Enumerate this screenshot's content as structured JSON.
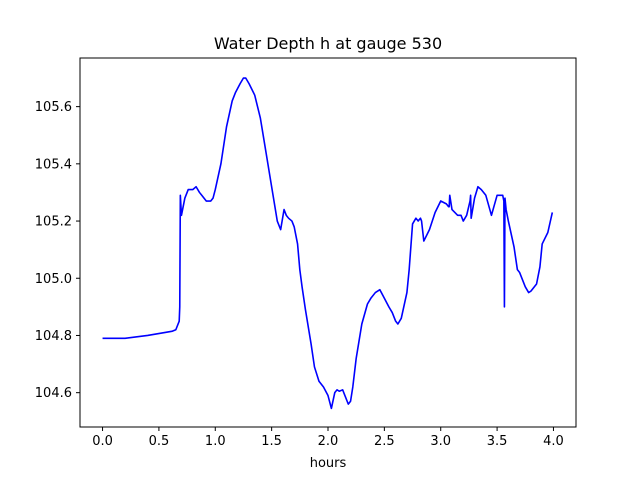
{
  "chart_data": {
    "type": "line",
    "title": "Water Depth h at gauge 530",
    "xlabel": "hours",
    "ylabel": "",
    "xlim": [
      -0.2,
      4.2
    ],
    "ylim": [
      104.48,
      105.77
    ],
    "xticks": [
      "0.0",
      "0.5",
      "1.0",
      "1.5",
      "2.0",
      "2.5",
      "3.0",
      "3.5",
      "4.0"
    ],
    "yticks": [
      "104.6",
      "104.8",
      "105.0",
      "105.2",
      "105.4",
      "105.6"
    ],
    "grid": false,
    "series": [
      {
        "color": "#0000ff",
        "x": [
          0.0,
          0.2,
          0.4,
          0.55,
          0.62,
          0.65,
          0.68,
          0.685,
          0.69,
          0.7,
          0.73,
          0.76,
          0.8,
          0.83,
          0.86,
          0.88,
          0.92,
          0.96,
          0.98,
          1.0,
          1.05,
          1.1,
          1.15,
          1.18,
          1.22,
          1.25,
          1.27,
          1.3,
          1.35,
          1.4,
          1.45,
          1.5,
          1.55,
          1.58,
          1.61,
          1.62,
          1.63,
          1.65,
          1.68,
          1.7,
          1.73,
          1.75,
          1.77,
          1.8,
          1.85,
          1.88,
          1.92,
          1.96,
          2.0,
          2.03,
          2.06,
          2.08,
          2.1,
          2.13,
          2.15,
          2.18,
          2.2,
          2.22,
          2.25,
          2.3,
          2.35,
          2.38,
          2.42,
          2.46,
          2.5,
          2.54,
          2.57,
          2.6,
          2.62,
          2.65,
          2.7,
          2.72,
          2.75,
          2.78,
          2.8,
          2.82,
          2.83,
          2.85,
          2.9,
          2.95,
          3.0,
          3.05,
          3.07,
          3.075,
          3.08,
          3.1,
          3.15,
          3.18,
          3.2,
          3.23,
          3.26,
          3.265,
          3.27,
          3.3,
          3.33,
          3.36,
          3.4,
          3.45,
          3.5,
          3.55,
          3.56,
          3.565,
          3.57,
          3.575,
          3.58,
          3.6,
          3.65,
          3.68,
          3.7,
          3.75,
          3.78,
          3.8,
          3.85,
          3.88,
          3.9,
          3.95,
          3.99
        ],
        "y": [
          104.79,
          104.79,
          104.8,
          104.81,
          104.815,
          104.82,
          104.85,
          104.9,
          105.29,
          105.22,
          105.28,
          105.31,
          105.31,
          105.32,
          105.3,
          105.29,
          105.27,
          105.27,
          105.28,
          105.31,
          105.4,
          105.53,
          105.62,
          105.65,
          105.68,
          105.7,
          105.7,
          105.68,
          105.64,
          105.56,
          105.44,
          105.32,
          105.2,
          105.17,
          105.24,
          105.23,
          105.22,
          105.21,
          105.2,
          105.18,
          105.12,
          105.03,
          104.97,
          104.89,
          104.77,
          104.69,
          104.64,
          104.62,
          104.59,
          104.545,
          104.6,
          104.61,
          104.605,
          104.61,
          104.59,
          104.56,
          104.57,
          104.62,
          104.72,
          104.84,
          104.91,
          104.93,
          104.95,
          104.96,
          104.93,
          104.9,
          104.88,
          104.85,
          104.84,
          104.86,
          104.95,
          105.03,
          105.19,
          105.21,
          105.2,
          105.21,
          105.2,
          105.13,
          105.17,
          105.23,
          105.27,
          105.26,
          105.25,
          105.25,
          105.29,
          105.24,
          105.22,
          105.22,
          105.2,
          105.22,
          105.27,
          105.29,
          105.21,
          105.28,
          105.32,
          105.31,
          105.29,
          105.22,
          105.29,
          105.29,
          105.27,
          104.9,
          105.28,
          105.26,
          105.24,
          105.2,
          105.11,
          105.03,
          105.02,
          104.97,
          104.95,
          104.955,
          104.98,
          105.04,
          105.12,
          105.16,
          105.23
        ]
      }
    ]
  }
}
